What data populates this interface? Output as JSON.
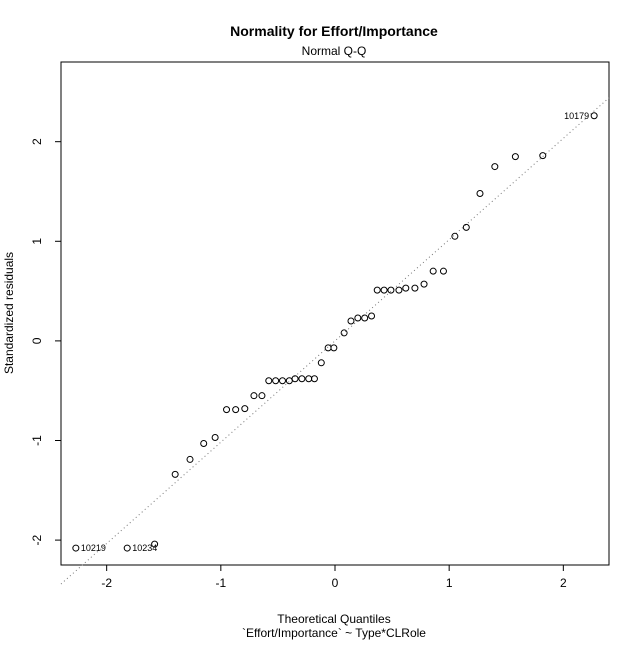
{
  "chart_data": {
    "type": "scatter",
    "title": "Normality for Effort/Importance",
    "subtitle": "Normal Q-Q",
    "xlabel": "Theoretical Quantiles",
    "xlabel_sub": "`Effort/Importance` ~ Type*CLRole",
    "ylabel": "Standardized residuals",
    "xlim": [
      -2.4,
      2.4
    ],
    "ylim": [
      -2.25,
      2.8
    ],
    "xticks": [
      -2,
      -1,
      0,
      1,
      2
    ],
    "yticks": [
      -2,
      -1,
      0,
      1,
      2
    ],
    "grid": false,
    "reference_line": {
      "slope": 1.017,
      "intercept": -0.0,
      "style": "dotted"
    },
    "points": [
      {
        "x": -2.27,
        "y": -2.08,
        "label": "10219"
      },
      {
        "x": -1.82,
        "y": -2.08,
        "label": "10234"
      },
      {
        "x": -1.58,
        "y": -2.04
      },
      {
        "x": -1.4,
        "y": -1.34
      },
      {
        "x": -1.27,
        "y": -1.19
      },
      {
        "x": -1.15,
        "y": -1.03
      },
      {
        "x": -1.05,
        "y": -0.97
      },
      {
        "x": -0.95,
        "y": -0.69
      },
      {
        "x": -0.87,
        "y": -0.69
      },
      {
        "x": -0.79,
        "y": -0.68
      },
      {
        "x": -0.71,
        "y": -0.55
      },
      {
        "x": -0.64,
        "y": -0.55
      },
      {
        "x": -0.58,
        "y": -0.4
      },
      {
        "x": -0.52,
        "y": -0.4
      },
      {
        "x": -0.46,
        "y": -0.4
      },
      {
        "x": -0.4,
        "y": -0.4
      },
      {
        "x": -0.35,
        "y": -0.38
      },
      {
        "x": -0.29,
        "y": -0.38
      },
      {
        "x": -0.23,
        "y": -0.38
      },
      {
        "x": -0.18,
        "y": -0.38
      },
      {
        "x": -0.12,
        "y": -0.22
      },
      {
        "x": -0.06,
        "y": -0.07
      },
      {
        "x": -0.01,
        "y": -0.07
      },
      {
        "x": 0.08,
        "y": 0.08
      },
      {
        "x": 0.14,
        "y": 0.2
      },
      {
        "x": 0.2,
        "y": 0.23
      },
      {
        "x": 0.26,
        "y": 0.23
      },
      {
        "x": 0.32,
        "y": 0.25
      },
      {
        "x": 0.37,
        "y": 0.51
      },
      {
        "x": 0.43,
        "y": 0.51
      },
      {
        "x": 0.49,
        "y": 0.51
      },
      {
        "x": 0.56,
        "y": 0.51
      },
      {
        "x": 0.62,
        "y": 0.53
      },
      {
        "x": 0.7,
        "y": 0.53
      },
      {
        "x": 0.78,
        "y": 0.57
      },
      {
        "x": 0.86,
        "y": 0.7
      },
      {
        "x": 0.95,
        "y": 0.7
      },
      {
        "x": 1.05,
        "y": 1.05
      },
      {
        "x": 1.15,
        "y": 1.14
      },
      {
        "x": 1.27,
        "y": 1.48
      },
      {
        "x": 1.4,
        "y": 1.75
      },
      {
        "x": 1.58,
        "y": 1.85
      },
      {
        "x": 1.82,
        "y": 1.86
      },
      {
        "x": 2.27,
        "y": 2.26,
        "label": "10179"
      }
    ]
  }
}
